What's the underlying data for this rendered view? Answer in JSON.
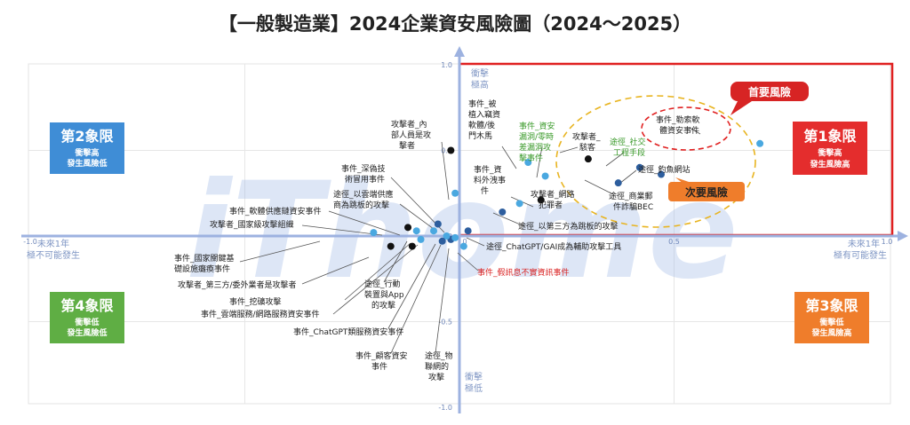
{
  "title": "【一般製造業】2024企業資安風險圖（2024～2025）",
  "watermark": "iThome",
  "axis": {
    "x_left_label": [
      "未來1年",
      "極不可能發生"
    ],
    "x_right_label": [
      "未來1年",
      "極有可能發生"
    ],
    "y_top_label": [
      "衝擊",
      "極高"
    ],
    "y_bottom_label": [
      "衝擊",
      "極低"
    ]
  },
  "quadrants": {
    "q1": {
      "title": "第1象限",
      "lines": [
        "衝擊高",
        "發生風險高"
      ],
      "color": "#e42d2d"
    },
    "q2": {
      "title": "第2象限",
      "lines": [
        "衝擊高",
        "發生風險低"
      ],
      "color": "#3f8dd6"
    },
    "q3": {
      "title": "第3象限",
      "lines": [
        "衝擊低",
        "發生風險高"
      ],
      "color": "#ef7d2b"
    },
    "q4": {
      "title": "第4象限",
      "lines": [
        "衝擊低",
        "發生風險低"
      ],
      "color": "#5fae44"
    }
  },
  "callouts": {
    "primary": "首要風險",
    "secondary": "次要風險"
  },
  "chart_data": {
    "type": "scatter",
    "xlim": [
      -1.0,
      1.0
    ],
    "ylim": [
      -1.0,
      1.0
    ],
    "x_ticks": [
      "-1.0",
      "0",
      "0.5",
      "1.0"
    ],
    "y_ticks": [
      "1.0",
      "0.5",
      "0",
      "-0.5",
      "-1.0"
    ],
    "grid": true,
    "points": [
      {
        "label": "事件_勒索軟體資安事件",
        "x": 0.7,
        "y": 0.54,
        "color": "#4aa8e0"
      },
      {
        "label": "攻擊者_駭客",
        "x": 0.3,
        "y": 0.45,
        "color": "#111111"
      },
      {
        "label": "途徑_社交工程手段",
        "x": 0.42,
        "y": 0.4,
        "color": "#2d5e9e"
      },
      {
        "label": "途徑_釣魚網站",
        "x": 0.47,
        "y": 0.36,
        "color": "#2d5e9e"
      },
      {
        "label": "途徑_商業郵件詐騙BEC",
        "x": 0.37,
        "y": 0.31,
        "color": "#2d5e9e"
      },
      {
        "label": "事件_被植入竊資軟體/後門木馬",
        "x": 0.16,
        "y": 0.43,
        "color": "#4aa8e0"
      },
      {
        "label": "事件_資安漏洞/零時差漏洞攻擊事件",
        "x": 0.2,
        "y": 0.35,
        "color": "#4aa8e0"
      },
      {
        "label": "事件_資料外洩事件",
        "x": 0.14,
        "y": 0.19,
        "color": "#4aa8e0"
      },
      {
        "label": "攻擊者_網路犯罪者",
        "x": 0.19,
        "y": 0.21,
        "color": "#111111"
      },
      {
        "label": "途徑_以第三方為跳板的攻擊",
        "x": 0.1,
        "y": 0.14,
        "color": "#2d5e9e"
      },
      {
        "label": "攻擊者_內部人員是攻擊者",
        "x": -0.02,
        "y": 0.5,
        "color": "#111111"
      },
      {
        "label": "事件_深偽技術冒用事件",
        "x": -0.01,
        "y": 0.25,
        "color": "#4aa8e0"
      },
      {
        "label": "途徑_以雲端供應商為跳板的攻擊",
        "x": -0.05,
        "y": 0.07,
        "color": "#2d5e9e"
      },
      {
        "label": "事件_軟體供應鏈資安事件",
        "x": -0.1,
        "y": 0.03,
        "color": "#4aa8e0"
      },
      {
        "label": "攻擊者_國家級攻擊組織",
        "x": -0.12,
        "y": 0.05,
        "color": "#111111"
      },
      {
        "label": "事件_國家關鍵基礎設施癱瘓事件",
        "x": -0.2,
        "y": 0.02,
        "color": "#4aa8e0"
      },
      {
        "label": "途徑_ChatGPT/GAI成為輔助攻擊工具",
        "x": 0.02,
        "y": 0.03,
        "color": "#2d5e9e"
      },
      {
        "label": "攻擊者_第三方/委外業者是攻擊者",
        "x": -0.11,
        "y": -0.06,
        "color": "#111111"
      },
      {
        "label": "事件_假訊息不實資訊事件",
        "x": 0.01,
        "y": -0.06,
        "color": "#4aa8e0"
      },
      {
        "label": "途徑_行動裝置與App的攻擊",
        "x": -0.02,
        "y": -0.02,
        "color": "#2d5e9e"
      },
      {
        "label": "事件_挖礦攻擊",
        "x": -0.09,
        "y": -0.02,
        "color": "#4aa8e0"
      },
      {
        "label": "事件_雲端服務/網路服務資安事件",
        "x": -0.06,
        "y": 0.03,
        "color": "#4aa8e0"
      },
      {
        "label": "事件_ChatGPT類服務資安事件",
        "x": -0.03,
        "y": 0.0,
        "color": "#4aa8e0"
      },
      {
        "label": "事件_顧客資安事件",
        "x": -0.01,
        "y": -0.01,
        "color": "#4aa8e0"
      },
      {
        "label": "途徑_物聯網的攻擊",
        "x": -0.04,
        "y": -0.03,
        "color": "#2d5e9e"
      },
      {
        "label": "攻擊者_第三方/委外業者是攻擊者(2)",
        "x": -0.16,
        "y": -0.06,
        "color": "#111111"
      }
    ]
  }
}
